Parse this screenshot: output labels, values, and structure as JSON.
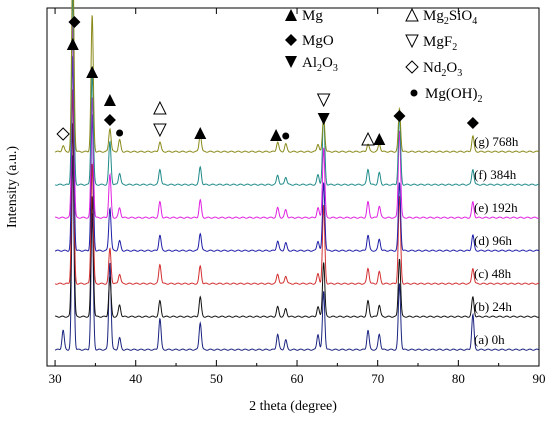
{
  "chart_data": {
    "type": "line",
    "title": "",
    "xlabel": "2 theta (degree)",
    "ylabel": "Intensity (a.u.)",
    "xlim": [
      29,
      90
    ],
    "x_ticks": [
      30,
      40,
      50,
      60,
      70,
      80,
      90
    ],
    "y_ticks_shown": false,
    "grid": false,
    "legend_position": "top-right",
    "peaks_2theta": [
      31.0,
      32.2,
      34.6,
      36.8,
      38.0,
      43.0,
      48.0,
      57.6,
      58.6,
      62.6,
      63.3,
      68.8,
      70.2,
      72.7,
      81.8
    ],
    "series": [
      {
        "name": "(a) 0h",
        "color": "#1a237e",
        "peak_heights": [
          10,
          100,
          70,
          45,
          6,
          16,
          14,
          8,
          5,
          8,
          30,
          10,
          8,
          34,
          18
        ]
      },
      {
        "name": "(b) 24h",
        "color": "#111111",
        "peak_heights": [
          0,
          100,
          62,
          20,
          6,
          8,
          10,
          5,
          4,
          5,
          28,
          8,
          6,
          30,
          10
        ]
      },
      {
        "name": "(c) 48h",
        "color": "#d32f2f",
        "peak_heights": [
          0,
          100,
          62,
          18,
          5,
          10,
          9,
          5,
          4,
          5,
          40,
          8,
          6,
          45,
          8
        ]
      },
      {
        "name": "(d) 96h",
        "color": "#1e1ea8",
        "peak_heights": [
          0,
          100,
          70,
          22,
          5,
          8,
          9,
          5,
          4,
          5,
          35,
          8,
          6,
          35,
          8
        ]
      },
      {
        "name": "(e) 192h",
        "color": "#e020e0",
        "peak_heights": [
          0,
          100,
          62,
          22,
          5,
          8,
          9,
          5,
          4,
          5,
          36,
          8,
          6,
          45,
          8
        ]
      },
      {
        "name": "(f) 384h",
        "color": "#1f8a8a",
        "peak_heights": [
          0,
          100,
          58,
          22,
          6,
          8,
          9,
          5,
          4,
          5,
          36,
          8,
          6,
          36,
          8
        ]
      },
      {
        "name": "(g) 768h",
        "color": "#8a8a1a",
        "peak_heights": [
          3,
          100,
          70,
          12,
          6,
          5,
          9,
          5,
          4,
          4,
          18,
          4,
          4,
          22,
          8
        ]
      }
    ],
    "legend": [
      {
        "marker": "filled-triangle-up",
        "label": "Mg"
      },
      {
        "marker": "open-triangle-up",
        "label": "Mg",
        "sub": "2",
        "label2": "SiO",
        "sub2": "4"
      },
      {
        "marker": "filled-diamond",
        "label": "MgO"
      },
      {
        "marker": "open-triangle-down",
        "label": "MgF",
        "sub": "2"
      },
      {
        "marker": "filled-triangle-down",
        "label": "Al",
        "sub": "2",
        "label2": "O",
        "sub2": "3"
      },
      {
        "marker": "open-diamond",
        "label": "Nd",
        "sub": "2",
        "label2": "O",
        "sub2": "3"
      },
      {
        "marker": "filled-circle",
        "label": "Mg(OH)",
        "sub": "2"
      }
    ],
    "peak_markers": [
      {
        "x": 31.0,
        "marker": "open-diamond"
      },
      {
        "x": 32.4,
        "marker": "filled-diamond"
      },
      {
        "x": 32.2,
        "marker": "filled-triangle-up"
      },
      {
        "x": 34.6,
        "marker": "filled-triangle-up"
      },
      {
        "x": 36.8,
        "marker": "filled-triangle-up"
      },
      {
        "x": 36.8,
        "marker": "filled-diamond"
      },
      {
        "x": 38.0,
        "marker": "filled-circle"
      },
      {
        "x": 43.0,
        "marker": "open-triangle-up"
      },
      {
        "x": 43.0,
        "marker": "open-triangle-down"
      },
      {
        "x": 48.0,
        "marker": "filled-triangle-up"
      },
      {
        "x": 57.4,
        "marker": "filled-triangle-up"
      },
      {
        "x": 58.6,
        "marker": "filled-circle"
      },
      {
        "x": 63.3,
        "marker": "open-triangle-down"
      },
      {
        "x": 63.3,
        "marker": "filled-triangle-down"
      },
      {
        "x": 68.8,
        "marker": "open-triangle-up"
      },
      {
        "x": 70.2,
        "marker": "filled-triangle-up"
      },
      {
        "x": 72.7,
        "marker": "filled-diamond"
      },
      {
        "x": 81.8,
        "marker": "filled-diamond"
      }
    ]
  }
}
